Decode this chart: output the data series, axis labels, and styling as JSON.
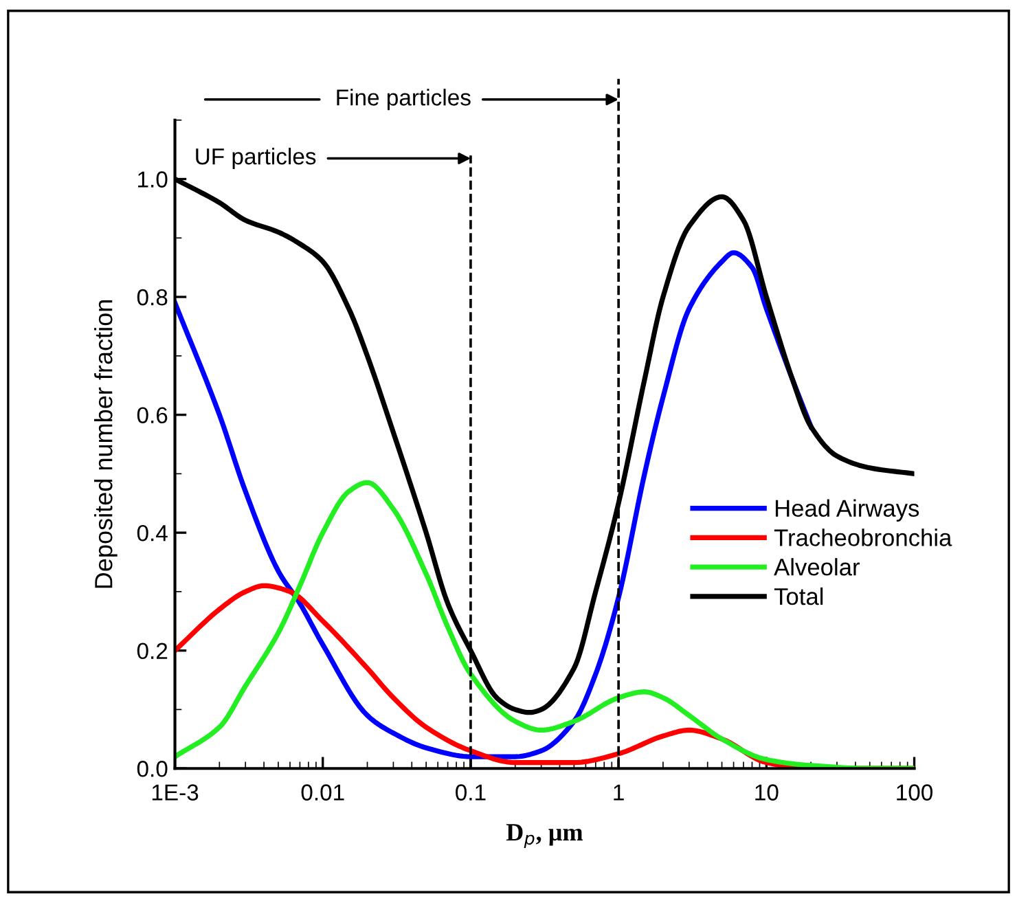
{
  "chart_data": {
    "type": "line",
    "xlabel": "D$_{p}$, µm",
    "ylabel": "Deposited number fraction",
    "log": "x",
    "xlim": [
      0.001,
      100
    ],
    "ylim": [
      0,
      1.1
    ],
    "xticks": [
      {
        "value": 0.001,
        "label": "1E-3"
      },
      0.01,
      0.1,
      1,
      10,
      100
    ],
    "yticks": [
      {
        "value": 0,
        "label": "0.0"
      },
      0.2,
      0.4,
      0.6,
      0.8,
      {
        "value": 1,
        "label": "1.0"
      }
    ],
    "grid": false,
    "legend": "right",
    "marker": "none",
    "line_style": "solid",
    "ref_lines": [
      {
        "axis": "x",
        "value": 0.1,
        "color": "#000000",
        "line_style": "dashed"
      },
      {
        "axis": "x",
        "value": 1,
        "color": "#000000",
        "line_style": "dashed"
      }
    ],
    "annotations": [
      "Fine particles",
      {
        "text": "UF particles",
        "x": 0.1,
        "y": 1.035
      }
    ],
    "series": [
      {
        "name": "Head Airways",
        "color": "#0000ff",
        "x": [
          0.001,
          0.002,
          0.003,
          0.005,
          0.007,
          0.01,
          0.02,
          0.03,
          0.05,
          0.1,
          0.2,
          0.3,
          0.5,
          0.7,
          1,
          1.5,
          2,
          3,
          5,
          6,
          8,
          10,
          15,
          20
        ],
        "values": [
          0.79,
          0.6,
          0.47,
          0.335,
          0.28,
          0.21,
          0.09,
          0.06,
          0.035,
          0.02,
          0.02,
          0.03,
          0.08,
          0.16,
          0.29,
          0.5,
          0.63,
          0.78,
          0.86,
          0.875,
          0.85,
          0.78,
          0.66,
          0.58
        ]
      },
      {
        "name": "Tracheobronchia",
        "color": "#ff0000",
        "x": [
          0.001,
          0.002,
          0.003,
          0.004,
          0.006,
          0.01,
          0.02,
          0.03,
          0.05,
          0.1,
          0.2,
          0.5,
          1,
          2,
          3,
          5,
          10,
          20,
          100
        ],
        "values": [
          0.2,
          0.27,
          0.3,
          0.31,
          0.3,
          0.25,
          0.17,
          0.12,
          0.07,
          0.03,
          0.01,
          0.01,
          0.025,
          0.055,
          0.065,
          0.05,
          0.01,
          0.0,
          0.0
        ]
      },
      {
        "name": "Alveolar",
        "color": "#22ee22",
        "x": [
          0.001,
          0.002,
          0.003,
          0.005,
          0.007,
          0.01,
          0.015,
          0.02,
          0.03,
          0.05,
          0.07,
          0.1,
          0.2,
          0.3,
          0.5,
          1,
          1.5,
          2,
          3,
          5,
          10,
          20,
          50,
          100
        ],
        "values": [
          0.02,
          0.07,
          0.14,
          0.23,
          0.31,
          0.4,
          0.47,
          0.485,
          0.44,
          0.33,
          0.24,
          0.16,
          0.08,
          0.065,
          0.08,
          0.12,
          0.13,
          0.12,
          0.09,
          0.05,
          0.015,
          0.005,
          0.0,
          0.0
        ]
      },
      {
        "name": "Total",
        "color": "#000000",
        "x": [
          0.001,
          0.002,
          0.003,
          0.005,
          0.007,
          0.01,
          0.015,
          0.02,
          0.03,
          0.05,
          0.07,
          0.1,
          0.15,
          0.2,
          0.25,
          0.3,
          0.5,
          0.7,
          1,
          1.5,
          2,
          3,
          5,
          7,
          10,
          15,
          20,
          30,
          50,
          100
        ],
        "values": [
          1.0,
          0.96,
          0.93,
          0.91,
          0.89,
          0.86,
          0.78,
          0.7,
          0.57,
          0.4,
          0.28,
          0.2,
          0.12,
          0.1,
          0.095,
          0.1,
          0.17,
          0.3,
          0.45,
          0.66,
          0.8,
          0.92,
          0.97,
          0.93,
          0.8,
          0.66,
          0.58,
          0.53,
          0.51,
          0.5
        ]
      }
    ]
  }
}
